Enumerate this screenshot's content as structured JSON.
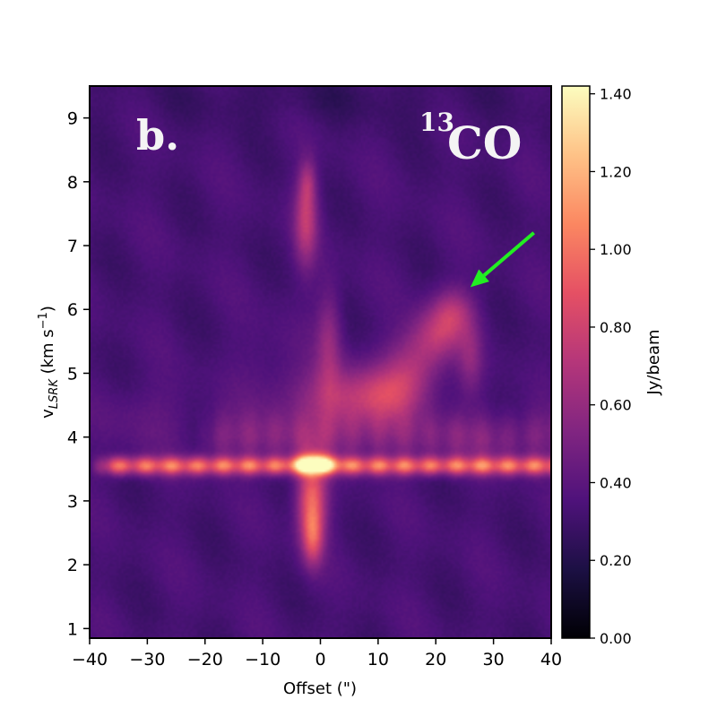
{
  "chart_data": {
    "type": "heatmap",
    "title": "",
    "panel_label": "b.",
    "species": {
      "superscript": "13",
      "text": "CO"
    },
    "xlabel": "Offset (\")",
    "ylabel": {
      "main": "v",
      "sub": "LSRK",
      "units_prefix": " (km s",
      "units_sup": "−1",
      "units_suffix": ")"
    },
    "xlim": [
      -40,
      40
    ],
    "ylim": [
      0.85,
      9.5
    ],
    "x_ticks": [
      -40,
      -30,
      -20,
      -10,
      0,
      10,
      20,
      30,
      40
    ],
    "x_tick_labels": [
      "−40",
      "−30",
      "−20",
      "−10",
      "0",
      "10",
      "20",
      "30",
      "40"
    ],
    "y_ticks": [
      1,
      2,
      3,
      4,
      5,
      6,
      7,
      8,
      9
    ],
    "y_tick_labels": [
      "1",
      "2",
      "3",
      "4",
      "5",
      "6",
      "7",
      "8",
      "9"
    ],
    "colormap": "magma",
    "colorbar": {
      "label": "Jy/beam",
      "range": [
        0,
        1.42
      ],
      "ticks": [
        0.0,
        0.2,
        0.4,
        0.6,
        0.8,
        1.0,
        1.2,
        1.4
      ],
      "tick_labels": [
        "0.00",
        "0.20",
        "0.40",
        "0.60",
        "0.80",
        "1.00",
        "1.20",
        "1.40"
      ]
    },
    "background_level": 0.33,
    "features": [
      {
        "kind": "horizontal-band",
        "velocity": 3.55,
        "width": 0.1,
        "x_range": [
          -40,
          40
        ],
        "peak": 0.72
      },
      {
        "kind": "horizontal-band",
        "velocity": 4.0,
        "width": 0.28,
        "x_range": [
          -22,
          40
        ],
        "peak": 0.22
      },
      {
        "kind": "blob",
        "x": -1,
        "y": 3.58,
        "sx": 2.2,
        "sy": 0.1,
        "peak": 0.72
      },
      {
        "kind": "blob",
        "x": -1.5,
        "y": 3.0,
        "sx": 1.8,
        "sy": 0.5,
        "peak": 0.62
      },
      {
        "kind": "blob",
        "x": -1.3,
        "y": 2.4,
        "sx": 1.2,
        "sy": 0.3,
        "peak": 0.35
      },
      {
        "kind": "blob",
        "x": -2.5,
        "y": 7.4,
        "sx": 1.4,
        "sy": 0.5,
        "peak": 0.4
      },
      {
        "kind": "blob",
        "x": -2.2,
        "y": 8.0,
        "sx": 1.0,
        "sy": 0.25,
        "peak": 0.2
      },
      {
        "kind": "blob",
        "x": 1.5,
        "y": 5.5,
        "sx": 1.5,
        "sy": 0.6,
        "peak": 0.25
      },
      {
        "kind": "blob",
        "x": 4,
        "y": 4.6,
        "sx": 6,
        "sy": 0.35,
        "peak": 0.35
      },
      {
        "kind": "blob",
        "x": 12,
        "y": 4.65,
        "sx": 4,
        "sy": 0.3,
        "peak": 0.28
      },
      {
        "kind": "blob",
        "x": 16,
        "y": 5.1,
        "sx": 3.5,
        "sy": 0.35,
        "peak": 0.3
      },
      {
        "kind": "blob",
        "x": 20,
        "y": 5.6,
        "sx": 3,
        "sy": 0.3,
        "peak": 0.32
      },
      {
        "kind": "blob",
        "x": 23,
        "y": 5.95,
        "sx": 2.5,
        "sy": 0.28,
        "peak": 0.32
      },
      {
        "kind": "blob",
        "x": 26,
        "y": 5.2,
        "sx": 1.5,
        "sy": 0.4,
        "peak": 0.2
      },
      {
        "kind": "blob",
        "x": -30,
        "y": 4.3,
        "sx": 6,
        "sy": 0.4,
        "peak": 0.08
      },
      {
        "kind": "blob",
        "x": -8,
        "y": 5.0,
        "sx": 5,
        "sy": 0.6,
        "peak": 0.06
      }
    ],
    "annotation_arrow": {
      "color": "#22ee22",
      "from": [
        37,
        7.2
      ],
      "to": [
        26,
        6.35
      ]
    }
  }
}
